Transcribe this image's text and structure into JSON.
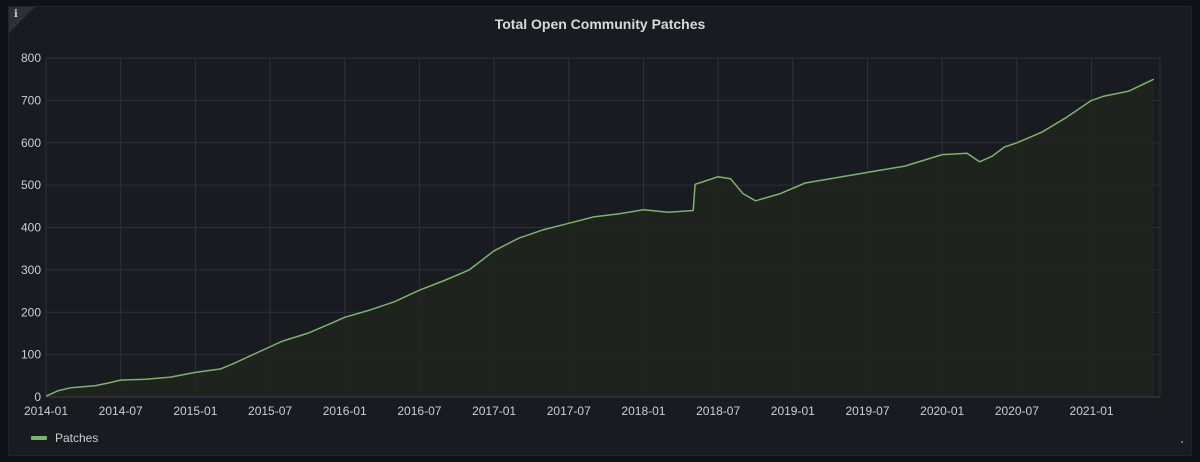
{
  "panel": {
    "title": "Total Open Community Patches",
    "info_icon": "info-icon"
  },
  "colors": {
    "background": "#111217",
    "panel": "#181b1f",
    "grid": "#2f3137",
    "series": "#7eb26d",
    "fill": "#1f251e"
  },
  "chart_data": {
    "type": "area",
    "title": "Total Open Community Patches",
    "xlabel": "",
    "ylabel": "",
    "ylim": [
      0,
      800
    ],
    "yticks": [
      0,
      100,
      200,
      300,
      400,
      500,
      600,
      700,
      800
    ],
    "ytick_labels": [
      "0",
      "100",
      "200",
      "300",
      "400",
      "500",
      "600",
      "700",
      "800"
    ],
    "xticks": [
      "2014-01",
      "2014-07",
      "2015-01",
      "2015-07",
      "2016-01",
      "2016-07",
      "2017-01",
      "2017-07",
      "2018-01",
      "2018-07",
      "2019-01",
      "2019-07",
      "2020-01",
      "2020-07",
      "2021-01"
    ],
    "xlim": [
      "2014-01",
      "2021-06"
    ],
    "grid": true,
    "legend_placement": "bottom-left",
    "series": [
      {
        "name": "Patches",
        "color": "#7eb26d",
        "points": [
          [
            "2014-01",
            2
          ],
          [
            "2014-02",
            15
          ],
          [
            "2014-03",
            22
          ],
          [
            "2014-04",
            24
          ],
          [
            "2014-05",
            27
          ],
          [
            "2014-06",
            33
          ],
          [
            "2014-07",
            40
          ],
          [
            "2014-09",
            42
          ],
          [
            "2014-11",
            47
          ],
          [
            "2015-01",
            58
          ],
          [
            "2015-03",
            66
          ],
          [
            "2015-04",
            78
          ],
          [
            "2015-06",
            105
          ],
          [
            "2015-08",
            132
          ],
          [
            "2015-10",
            150
          ],
          [
            "2015-12",
            175
          ],
          [
            "2016-01",
            188
          ],
          [
            "2016-03",
            205
          ],
          [
            "2016-05",
            225
          ],
          [
            "2016-07",
            252
          ],
          [
            "2016-09",
            275
          ],
          [
            "2016-11",
            300
          ],
          [
            "2017-01",
            345
          ],
          [
            "2017-03",
            375
          ],
          [
            "2017-05",
            395
          ],
          [
            "2017-07",
            410
          ],
          [
            "2017-09",
            425
          ],
          [
            "2017-11",
            432
          ],
          [
            "2018-01",
            442
          ],
          [
            "2018-03",
            436
          ],
          [
            "2018-05",
            440
          ],
          [
            "2018-05",
            502
          ],
          [
            "2018-06",
            510
          ],
          [
            "2018-07",
            520
          ],
          [
            "2018-08",
            515
          ],
          [
            "2018-09",
            480
          ],
          [
            "2018-10",
            463
          ],
          [
            "2018-12",
            480
          ],
          [
            "2019-02",
            505
          ],
          [
            "2019-04",
            515
          ],
          [
            "2019-06",
            525
          ],
          [
            "2019-08",
            535
          ],
          [
            "2019-10",
            545
          ],
          [
            "2020-01",
            572
          ],
          [
            "2020-03",
            575
          ],
          [
            "2020-04",
            555
          ],
          [
            "2020-05",
            568
          ],
          [
            "2020-06",
            590
          ],
          [
            "2020-07",
            600
          ],
          [
            "2020-09",
            625
          ],
          [
            "2020-11",
            660
          ],
          [
            "2021-01",
            700
          ],
          [
            "2021-02",
            710
          ],
          [
            "2021-04",
            722
          ],
          [
            "2021-06",
            750
          ]
        ]
      }
    ]
  },
  "legend": {
    "items": [
      {
        "label": "Patches"
      }
    ]
  }
}
